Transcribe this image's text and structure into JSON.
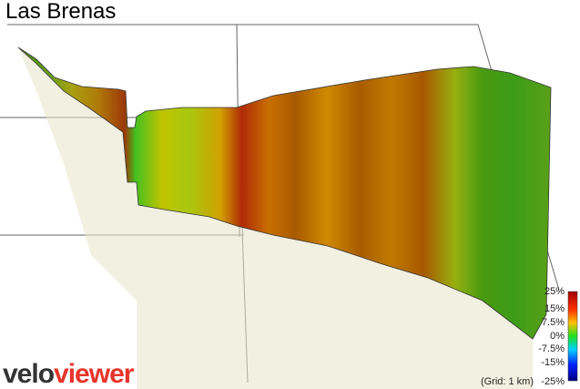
{
  "title": "Las Brenas",
  "color_scale": {
    "labels": [
      "25%",
      "15%",
      "7.5%",
      "0%",
      "-7.5%",
      "-15%",
      "-25%"
    ]
  },
  "grid_note": "(Grid: 1 km)",
  "logo": {
    "part1": "velo",
    "part2": "viewer"
  }
}
